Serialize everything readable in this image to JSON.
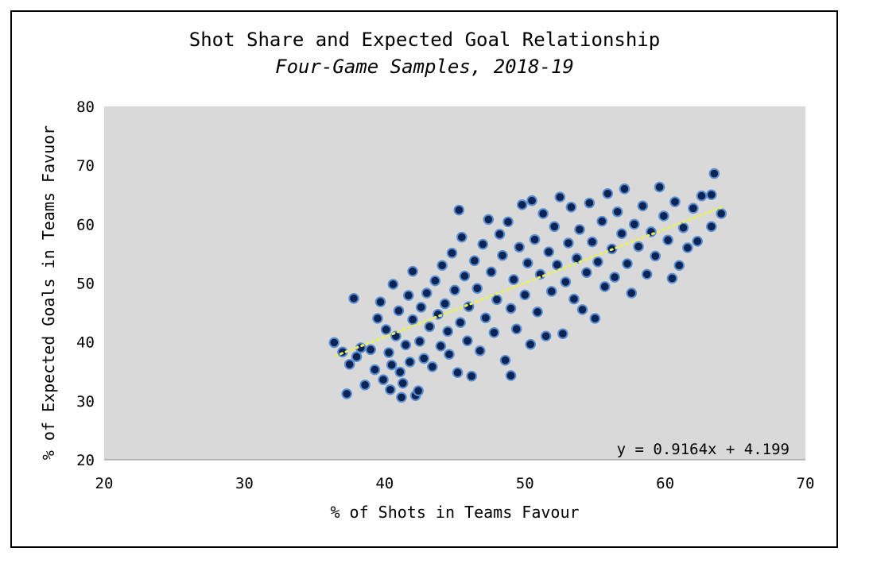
{
  "chart_data": {
    "type": "scatter",
    "title": "Shot Share and Expected Goal Relationship",
    "subtitle": "Four-Game Samples, 2018-19",
    "xlabel": "% of Shots in Teams Favour",
    "ylabel": "% of Expected Goals in Teams Favuor",
    "xlim": [
      20,
      70
    ],
    "ylim": [
      20,
      80
    ],
    "xticks": [
      "20",
      "30",
      "40",
      "50",
      "60",
      "70"
    ],
    "yticks": [
      "20",
      "30",
      "40",
      "50",
      "60",
      "70",
      "80"
    ],
    "grid": false,
    "legend": "none",
    "trendline": {
      "type": "linear",
      "slope": 0.9164,
      "intercept": 4.199,
      "x_range": [
        36.5,
        64
      ],
      "equation_label": "y = 0.9164x + 4.199",
      "color": "#e8f060"
    },
    "colors": {
      "plot_background": "#d9d9d9",
      "point_fill": "#0c2355",
      "point_edge": "#5b8fd0"
    },
    "series": [
      {
        "points": [
          [
            36.4,
            39.9
          ],
          [
            37.0,
            38.3
          ],
          [
            37.3,
            31.2
          ],
          [
            37.5,
            36.2
          ],
          [
            37.8,
            47.4
          ],
          [
            38.0,
            37.5
          ],
          [
            38.3,
            39.0
          ],
          [
            38.6,
            32.7
          ],
          [
            39.0,
            38.7
          ],
          [
            39.3,
            35.3
          ],
          [
            39.5,
            44.0
          ],
          [
            39.7,
            46.8
          ],
          [
            39.9,
            33.6
          ],
          [
            40.1,
            42.1
          ],
          [
            40.3,
            38.2
          ],
          [
            40.4,
            31.9
          ],
          [
            40.5,
            36.1
          ],
          [
            40.6,
            49.8
          ],
          [
            40.8,
            41.0
          ],
          [
            41.0,
            45.3
          ],
          [
            41.1,
            34.9
          ],
          [
            41.2,
            30.6
          ],
          [
            41.3,
            33.0
          ],
          [
            41.5,
            39.5
          ],
          [
            41.7,
            47.9
          ],
          [
            41.8,
            36.6
          ],
          [
            42.0,
            52.0
          ],
          [
            42.0,
            43.8
          ],
          [
            42.2,
            30.9
          ],
          [
            42.4,
            31.7
          ],
          [
            42.5,
            40.1
          ],
          [
            42.6,
            45.9
          ],
          [
            42.8,
            37.2
          ],
          [
            43.0,
            48.3
          ],
          [
            43.2,
            42.6
          ],
          [
            43.4,
            35.8
          ],
          [
            43.6,
            50.4
          ],
          [
            43.8,
            44.7
          ],
          [
            44.0,
            39.3
          ],
          [
            44.1,
            53.0
          ],
          [
            44.3,
            46.5
          ],
          [
            44.5,
            41.8
          ],
          [
            44.6,
            37.9
          ],
          [
            44.8,
            55.1
          ],
          [
            45.0,
            48.8
          ],
          [
            45.2,
            34.8
          ],
          [
            45.3,
            62.4
          ],
          [
            45.4,
            43.3
          ],
          [
            45.5,
            57.8
          ],
          [
            45.7,
            51.2
          ],
          [
            45.9,
            40.2
          ],
          [
            46.0,
            46.0
          ],
          [
            46.2,
            34.2
          ],
          [
            46.4,
            53.8
          ],
          [
            46.6,
            49.1
          ],
          [
            46.8,
            38.5
          ],
          [
            47.0,
            56.6
          ],
          [
            47.2,
            44.1
          ],
          [
            47.4,
            60.8
          ],
          [
            47.6,
            51.9
          ],
          [
            47.8,
            41.6
          ],
          [
            48.0,
            47.2
          ],
          [
            48.2,
            58.3
          ],
          [
            48.4,
            54.7
          ],
          [
            48.6,
            36.9
          ],
          [
            48.8,
            60.4
          ],
          [
            49.0,
            34.3
          ],
          [
            49.0,
            45.7
          ],
          [
            49.2,
            50.6
          ],
          [
            49.4,
            42.2
          ],
          [
            49.6,
            56.1
          ],
          [
            49.8,
            63.3
          ],
          [
            50.0,
            48.0
          ],
          [
            50.2,
            53.4
          ],
          [
            50.4,
            39.6
          ],
          [
            50.5,
            64.0
          ],
          [
            50.7,
            57.4
          ],
          [
            50.9,
            45.1
          ],
          [
            51.1,
            51.5
          ],
          [
            51.3,
            61.8
          ],
          [
            51.5,
            41.0
          ],
          [
            51.7,
            55.3
          ],
          [
            51.9,
            48.6
          ],
          [
            52.1,
            59.6
          ],
          [
            52.3,
            53.1
          ],
          [
            52.5,
            64.6
          ],
          [
            52.7,
            41.4
          ],
          [
            52.9,
            50.2
          ],
          [
            53.1,
            56.8
          ],
          [
            53.3,
            62.9
          ],
          [
            53.5,
            47.3
          ],
          [
            53.7,
            54.2
          ],
          [
            53.9,
            59.1
          ],
          [
            54.1,
            45.5
          ],
          [
            54.4,
            51.8
          ],
          [
            54.6,
            63.6
          ],
          [
            54.8,
            57.0
          ],
          [
            55.0,
            44.0
          ],
          [
            55.2,
            53.6
          ],
          [
            55.5,
            60.5
          ],
          [
            55.7,
            49.4
          ],
          [
            55.9,
            65.2
          ],
          [
            56.2,
            55.8
          ],
          [
            56.4,
            51.0
          ],
          [
            56.6,
            62.1
          ],
          [
            56.9,
            58.4
          ],
          [
            57.1,
            66.0
          ],
          [
            57.3,
            53.3
          ],
          [
            57.6,
            48.3
          ],
          [
            57.8,
            60.0
          ],
          [
            58.1,
            56.2
          ],
          [
            58.4,
            63.1
          ],
          [
            58.7,
            51.5
          ],
          [
            59.0,
            58.7
          ],
          [
            59.3,
            54.6
          ],
          [
            59.6,
            66.3
          ],
          [
            59.9,
            61.4
          ],
          [
            60.2,
            57.3
          ],
          [
            60.5,
            50.8
          ],
          [
            60.7,
            63.8
          ],
          [
            61.0,
            53.0
          ],
          [
            61.3,
            59.4
          ],
          [
            61.6,
            56.0
          ],
          [
            62.0,
            62.7
          ],
          [
            62.3,
            57.1
          ],
          [
            62.6,
            64.8
          ],
          [
            63.3,
            59.6
          ],
          [
            63.3,
            65.0
          ],
          [
            63.5,
            68.6
          ],
          [
            64.0,
            61.8
          ]
        ]
      }
    ]
  }
}
